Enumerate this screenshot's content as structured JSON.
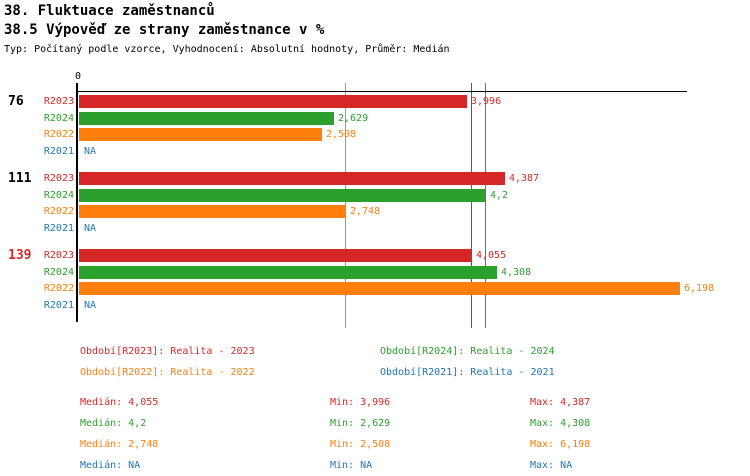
{
  "header": {
    "title": "38. Fluktuace zaměstnanců",
    "subtitle": "38.5 Výpověď ze strany zaměstnance v %",
    "config_line": "Typ: Počítaný podle vzorce, Vyhodnocení: Absolutní hodnoty, Průměr: Medián"
  },
  "colors": {
    "series_r2023": "#d62728",
    "series_r2024": "#2ca02c",
    "series_r2022": "#ff7f0e",
    "series_r2021": "#1f77b4",
    "axis": "#000000",
    "group_highlight": "#d62728"
  },
  "chart_data": {
    "type": "bar",
    "orientation": "horizontal",
    "grid": false,
    "axis": {
      "zero_label": "0",
      "xlim": [
        0,
        6.28
      ]
    },
    "na_text": "NA",
    "groups": [
      {
        "label": "76",
        "label_color": "#000000",
        "bars": [
          {
            "series": "R2023",
            "value": 3.996,
            "display": "3,996",
            "color": "#d62728"
          },
          {
            "series": "R2024",
            "value": 2.629,
            "display": "2,629",
            "color": "#2ca02c"
          },
          {
            "series": "R2022",
            "value": 2.508,
            "display": "2,508",
            "color": "#ff7f0e"
          },
          {
            "series": "R2021",
            "value": null,
            "display": "NA",
            "color": "#1f77b4"
          }
        ]
      },
      {
        "label": "111",
        "label_color": "#000000",
        "bars": [
          {
            "series": "R2023",
            "value": 4.387,
            "display": "4,387",
            "color": "#d62728"
          },
          {
            "series": "R2024",
            "value": 4.2,
            "display": "4,2",
            "color": "#2ca02c"
          },
          {
            "series": "R2022",
            "value": 2.748,
            "display": "2,748",
            "color": "#ff7f0e"
          },
          {
            "series": "R2021",
            "value": null,
            "display": "NA",
            "color": "#1f77b4"
          }
        ]
      },
      {
        "label": "139",
        "label_color": "#d62728",
        "bars": [
          {
            "series": "R2023",
            "value": 4.055,
            "display": "4,055",
            "color": "#d62728"
          },
          {
            "series": "R2024",
            "value": 4.308,
            "display": "4,308",
            "color": "#2ca02c"
          },
          {
            "series": "R2022",
            "value": 6.198,
            "display": "6,198",
            "color": "#ff7f0e"
          },
          {
            "series": "R2021",
            "value": null,
            "display": "NA",
            "color": "#1f77b4"
          }
        ]
      }
    ],
    "median_lines": [
      {
        "series": "R2023",
        "value": 4.055,
        "color": "#d62728"
      },
      {
        "series": "R2024",
        "value": 4.2,
        "color": "#2ca02c"
      },
      {
        "series": "R2022",
        "value": 2.748,
        "color": "#ff7f0e"
      }
    ]
  },
  "legend": {
    "rows": [
      [
        {
          "text": "Období[R2023]: Realita - 2023",
          "color": "#d62728"
        },
        {
          "text": "Období[R2024]: Realita - 2024",
          "color": "#2ca02c"
        }
      ],
      [
        {
          "text": "Období[R2022]: Realita - 2022",
          "color": "#ff7f0e"
        },
        {
          "text": "Období[R2021]: Realita - 2021",
          "color": "#1f77b4"
        }
      ]
    ]
  },
  "stats": {
    "rows": [
      {
        "color": "#d62728",
        "median": "Medián: 4,055",
        "min": "Min: 3,996",
        "max": "Max: 4,387"
      },
      {
        "color": "#2ca02c",
        "median": "Medián: 4,2",
        "min": "Min: 2,629",
        "max": "Max: 4,308"
      },
      {
        "color": "#ff7f0e",
        "median": "Medián: 2,748",
        "min": "Min: 2,508",
        "max": "Max: 6,198"
      },
      {
        "color": "#1f77b4",
        "median": "Medián: NA",
        "min": "Min: NA",
        "max": "Max: NA"
      }
    ]
  }
}
